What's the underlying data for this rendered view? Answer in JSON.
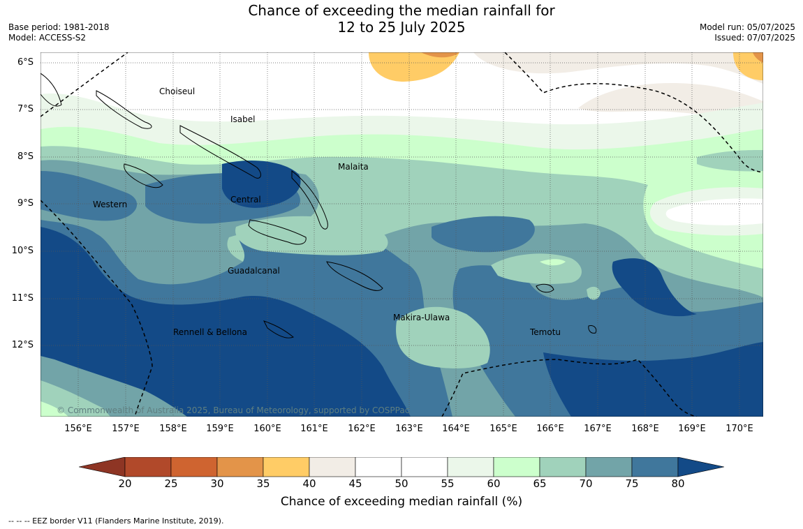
{
  "title": {
    "line1": "Chance of exceeding the median rainfall for",
    "line2": "12 to 25 July 2025"
  },
  "meta_left": {
    "base_period": "Base period: 1981-2018",
    "model": "Model: ACCESS-S2"
  },
  "meta_right": {
    "model_run": "Model run: 05/07/2025",
    "issued": "Issued: 07/07/2025"
  },
  "map": {
    "lat_labels": [
      "6°S",
      "7°S",
      "8°S",
      "9°S",
      "10°S",
      "11°S",
      "12°S"
    ],
    "lon_labels": [
      "156°E",
      "157°E",
      "158°E",
      "159°E",
      "160°E",
      "161°E",
      "162°E",
      "163°E",
      "164°E",
      "165°E",
      "166°E",
      "167°E",
      "168°E",
      "169°E",
      "170°E"
    ],
    "places": [
      {
        "name": "Choiseul"
      },
      {
        "name": "Isabel"
      },
      {
        "name": "Malaita"
      },
      {
        "name": "Western"
      },
      {
        "name": "Central"
      },
      {
        "name": "Guadalcanal"
      },
      {
        "name": "Makira-Ulawa"
      },
      {
        "name": "Temotu"
      },
      {
        "name": "Rennell & Bellona"
      }
    ],
    "copyright": "© Commonwealth of Australia 2025, Bureau of Meteorology, supported by COSPPac"
  },
  "colorbar": {
    "ticks": [
      "20",
      "25",
      "30",
      "35",
      "40",
      "45",
      "50",
      "55",
      "60",
      "65",
      "70",
      "75",
      "80"
    ],
    "colors": [
      "#b1492a",
      "#cf6430",
      "#e39449",
      "#ffcc66",
      "#f2ede6",
      "#ffffff",
      "#ffffff",
      "#ebf7ea",
      "#ccffcc",
      "#a0d2bb",
      "#72a4a8",
      "#40779c"
    ],
    "under_color": "#8e3524",
    "over_color": "#134a87",
    "title": "Chance of exceeding median rainfall (%)"
  },
  "footnote": "--  --  -- EEZ border V11 (Flanders Marine Institute, 2019)."
}
